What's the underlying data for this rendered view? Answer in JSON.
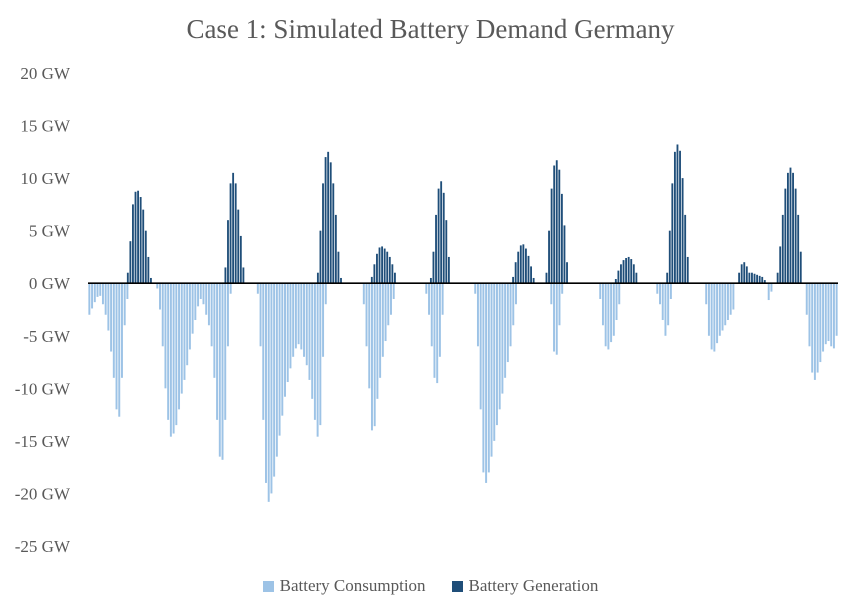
{
  "chart_data": {
    "type": "bar",
    "title": "Case 1: Simulated Battery Demand Germany",
    "y_tick_labels": [
      "20 GW",
      "15 GW",
      "10 GW",
      "5 GW",
      "0 GW",
      "-5 GW",
      "-10 GW",
      "-15 GW",
      "-20 GW",
      "-25 GW"
    ],
    "ylim": [
      -25,
      20
    ],
    "unit": "GW",
    "grid": false,
    "legend_position": "bottom",
    "series": [
      {
        "name": "Battery Consumption",
        "color": "#9dc3e6",
        "values": [
          -3,
          -2.4,
          -1.8,
          -1.3,
          -1.2,
          -2,
          -3,
          -4.5,
          -6.5,
          -9,
          -12,
          -12.7,
          -9,
          -4,
          -1.5,
          0,
          0,
          0,
          0,
          0,
          0,
          0,
          0,
          0,
          0,
          -0.5,
          -2.5,
          -6,
          -10,
          -13,
          -14.6,
          -14.3,
          -13.5,
          -12,
          -10.5,
          -9.2,
          -7.8,
          -6.3,
          -4.8,
          -3.5,
          -2.2,
          -1.5,
          -2,
          -3,
          -4,
          -6,
          -9,
          -13,
          -16.5,
          -16.8,
          -13,
          -6,
          -1,
          0,
          0,
          0,
          0,
          0,
          0,
          0,
          0,
          0,
          -1,
          -6,
          -13,
          -19,
          -20.8,
          -20,
          -18.4,
          -16.5,
          -14.5,
          -12.6,
          -10.8,
          -9.4,
          -8.1,
          -7,
          -6.2,
          -5.8,
          -6.3,
          -7,
          -7.8,
          -9.2,
          -11,
          -13,
          -14.6,
          -13.5,
          -7,
          -2,
          0,
          0,
          0,
          0,
          0,
          0,
          0,
          0,
          0,
          0,
          0,
          0,
          0,
          -2,
          -6,
          -10,
          -14,
          -13.6,
          -11,
          -9,
          -7,
          -5.5,
          -4,
          -3,
          -1.5,
          0,
          0,
          0,
          0,
          0,
          0,
          0,
          0,
          0,
          0,
          0,
          -1,
          -3,
          -6,
          -9,
          -9.5,
          -7,
          -3,
          0,
          0,
          0,
          0,
          0,
          0,
          0,
          0,
          0,
          0,
          0,
          -1,
          -6,
          -12,
          -18,
          -19,
          -18,
          -16.5,
          -15,
          -13.5,
          -12,
          -10.5,
          -9,
          -7.5,
          -6,
          -4,
          -2,
          0,
          0,
          0,
          0,
          0,
          0,
          0,
          0,
          0,
          0,
          0,
          0,
          -2,
          -6.5,
          -6.8,
          -4,
          -1,
          0,
          0,
          0,
          0,
          0,
          0,
          0,
          0,
          0,
          0,
          0,
          0,
          0,
          -1.5,
          -4,
          -6,
          -6.3,
          -5.6,
          -5,
          -3.5,
          -2,
          0,
          0,
          0,
          0,
          0,
          0,
          0,
          0,
          0,
          0,
          0,
          0,
          0,
          -1,
          -2,
          -3.5,
          -5,
          -4,
          -1.5,
          0,
          0,
          0,
          0,
          0,
          0,
          0,
          0,
          0,
          0,
          0,
          0,
          -2,
          -5,
          -6.3,
          -6.5,
          -5.7,
          -5,
          -4.5,
          -4,
          -3.5,
          -3,
          -2.5,
          0,
          0,
          0,
          0,
          0,
          0,
          0,
          0,
          0,
          0,
          0,
          0,
          -1.6,
          -0.8,
          0,
          0,
          0,
          0,
          0,
          0,
          0,
          0,
          0,
          0,
          0,
          0,
          -3,
          -6,
          -8.5,
          -9.2,
          -8.5,
          -7.5,
          -6.5,
          -5.8,
          -5.5,
          -6,
          -6.2,
          -5
        ]
      },
      {
        "name": "Battery Generation",
        "color": "#1f4e79",
        "values": [
          0,
          0,
          0,
          0,
          0,
          0,
          0,
          0,
          0,
          0,
          0,
          0,
          0,
          0,
          0,
          1,
          4,
          7.5,
          8.7,
          8.8,
          8.2,
          7,
          5,
          2.5,
          0.5,
          0,
          0,
          0,
          0,
          0,
          0,
          0,
          0,
          0,
          0,
          0,
          0,
          0,
          0,
          0,
          0,
          0,
          0,
          0,
          0,
          0,
          0,
          0,
          0,
          0,
          0,
          0,
          0,
          1.5,
          6,
          9.5,
          10.5,
          9.5,
          7,
          4.5,
          1.5,
          0,
          0,
          0,
          0,
          0,
          0,
          0,
          0,
          0,
          0,
          0,
          0,
          0,
          0,
          0,
          0,
          0,
          0,
          0,
          0,
          0,
          0,
          0,
          0,
          0,
          0,
          0,
          0,
          1,
          5,
          9.5,
          12,
          12.5,
          11.5,
          9.5,
          6.5,
          3,
          0.5,
          0,
          0,
          0,
          0,
          0,
          0,
          0,
          0,
          0,
          0,
          0,
          0.6,
          1.8,
          2.8,
          3.4,
          3.5,
          3.3,
          3,
          2.5,
          1.8,
          1,
          0,
          0,
          0,
          0,
          0,
          0,
          0,
          0,
          0,
          0,
          0,
          0,
          0,
          0.5,
          3,
          6.5,
          9,
          9.7,
          8.6,
          6,
          2.5,
          0,
          0,
          0,
          0,
          0,
          0,
          0,
          0,
          0,
          0,
          0,
          0,
          0,
          0,
          0,
          0,
          0,
          0,
          0,
          0,
          0,
          0,
          0,
          0,
          0.6,
          2,
          3,
          3.6,
          3.7,
          3.3,
          2.6,
          1.6,
          0.5,
          0,
          0,
          0,
          0,
          1,
          5,
          9,
          11.2,
          11.7,
          10.8,
          8.5,
          5.5,
          2,
          0,
          0,
          0,
          0,
          0,
          0,
          0,
          0,
          0,
          0,
          0,
          0,
          0,
          0,
          0,
          0,
          0,
          0,
          0.4,
          1.2,
          1.8,
          2.2,
          2.4,
          2.5,
          2.3,
          1.8,
          1,
          0,
          0,
          0,
          0,
          0,
          0,
          0,
          0,
          0,
          0,
          0,
          1,
          5,
          9.5,
          12.5,
          13.2,
          12.6,
          10,
          6.5,
          2.5,
          0,
          0,
          0,
          0,
          0,
          0,
          0,
          0,
          0,
          0,
          0,
          0,
          0,
          0,
          0,
          0,
          0,
          0,
          0,
          1,
          1.8,
          2,
          1.6,
          1,
          1,
          0.9,
          0.8,
          0.7,
          0.6,
          0.3,
          0,
          0,
          0,
          0,
          1,
          3.5,
          6.5,
          9,
          10.5,
          11,
          10.5,
          9,
          6.5,
          3,
          0,
          0,
          0,
          0,
          0,
          0,
          0,
          0,
          0,
          0,
          0,
          0,
          0,
          0
        ]
      }
    ]
  }
}
